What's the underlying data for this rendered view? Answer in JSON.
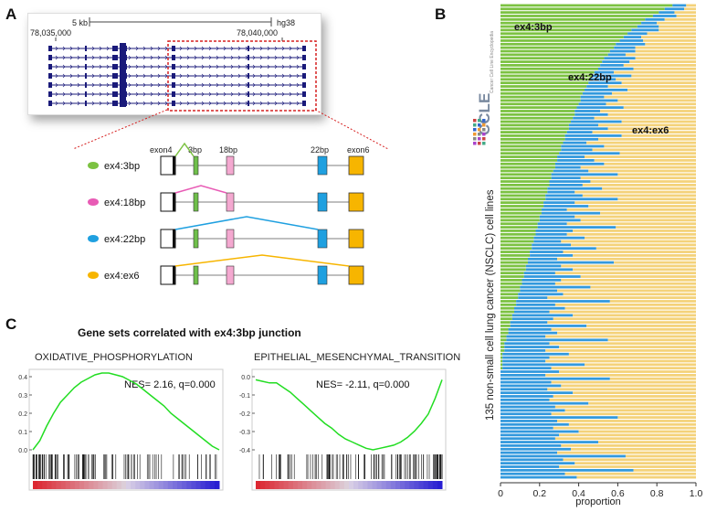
{
  "panels": {
    "a": "A",
    "b": "B",
    "c": "C"
  },
  "panel_a": {
    "scale_label": "5 kb",
    "assembly": "hg38",
    "coord_left": "78,035,000",
    "coord_right": "78,040,000",
    "exon_labels": [
      "exon4",
      "3bp",
      "18bp",
      "22bp",
      "exon6"
    ],
    "junctions": [
      {
        "label": "ex4:3bp",
        "color": "#7cc242"
      },
      {
        "label": "ex4:18bp",
        "color": "#e85bb5"
      },
      {
        "label": "ex4:22bp",
        "color": "#1fa0e0"
      },
      {
        "label": "ex4:ex6",
        "color": "#f7b500"
      }
    ],
    "colors": {
      "gene": "#1a1a7a",
      "highlight": "#d62020",
      "exon3bp": "#6fbf4a",
      "exon18bp": "#f4a8d0",
      "exon22bp": "#1fa0e0",
      "exon6": "#f7b500"
    }
  },
  "panel_c": {
    "title": "Gene sets correlated with ex4:3bp junction",
    "plots": [
      {
        "name": "OXIDATIVE_PHOSPHORYLATION",
        "stat": "NES= 2.16, q=0.000",
        "yticks": [
          "0.4",
          "0.3",
          "0.2",
          "0.1",
          "0.0"
        ],
        "ymin": 0.0,
        "ymax": 0.4,
        "curve": [
          0.0,
          0.05,
          0.13,
          0.2,
          0.26,
          0.3,
          0.34,
          0.37,
          0.39,
          0.41,
          0.42,
          0.42,
          0.41,
          0.4,
          0.38,
          0.36,
          0.33,
          0.3,
          0.27,
          0.24,
          0.2,
          0.17,
          0.14,
          0.11,
          0.08,
          0.05,
          0.02,
          0.0
        ]
      },
      {
        "name": "EPITHELIAL_MESENCHYMAL_TRANSITION",
        "stat": "NES= -2.11, q=0.000",
        "yticks": [
          "0.0",
          "-0.1",
          "-0.2",
          "-0.3",
          "-0.4"
        ],
        "ymin": -0.45,
        "ymax": 0.02,
        "curve": [
          0.0,
          -0.01,
          -0.02,
          -0.02,
          -0.05,
          -0.08,
          -0.12,
          -0.16,
          -0.2,
          -0.24,
          -0.28,
          -0.31,
          -0.35,
          -0.38,
          -0.4,
          -0.42,
          -0.44,
          -0.45,
          -0.44,
          -0.43,
          -0.42,
          -0.4,
          -0.37,
          -0.33,
          -0.28,
          -0.22,
          -0.12,
          0.0
        ]
      }
    ]
  },
  "chart_data": {
    "type": "bar",
    "orientation": "horizontal-stacked",
    "title": "",
    "xlabel": "proportion",
    "ylabel": "135 non-small cell lung cancer (NSCLC) cell lines",
    "xlim": [
      0,
      1.0
    ],
    "xticks": [
      "0",
      "0.2",
      "0.4",
      "0.6",
      "0.8",
      "1.0"
    ],
    "series_labels": [
      "ex4:3bp",
      "ex4:22bp",
      "ex4:ex6"
    ],
    "series_colors": [
      "#7cc242",
      "#3399dd",
      "#f4d27a"
    ],
    "logo_text": "CCLE",
    "logo_subtext": "Cancer Cell Line Encyclopedia",
    "n_rows": 135,
    "ex4_3bp": [
      0.88,
      0.84,
      0.81,
      0.78,
      0.74,
      0.72,
      0.7,
      0.67,
      0.65,
      0.63,
      0.61,
      0.59,
      0.58,
      0.56,
      0.55,
      0.53,
      0.52,
      0.51,
      0.5,
      0.48,
      0.47,
      0.46,
      0.45,
      0.44,
      0.43,
      0.42,
      0.41,
      0.41,
      0.4,
      0.39,
      0.38,
      0.38,
      0.37,
      0.36,
      0.35,
      0.35,
      0.34,
      0.33,
      0.33,
      0.32,
      0.31,
      0.31,
      0.3,
      0.29,
      0.29,
      0.28,
      0.28,
      0.27,
      0.26,
      0.26,
      0.25,
      0.25,
      0.24,
      0.24,
      0.23,
      0.23,
      0.22,
      0.22,
      0.21,
      0.21,
      0.2,
      0.2,
      0.19,
      0.19,
      0.18,
      0.18,
      0.17,
      0.17,
      0.16,
      0.16,
      0.15,
      0.15,
      0.14,
      0.14,
      0.13,
      0.13,
      0.12,
      0.12,
      0.11,
      0.11,
      0.1,
      0.1,
      0.09,
      0.09,
      0.08,
      0.08,
      0.07,
      0.07,
      0.06,
      0.06,
      0.05,
      0.05,
      0.04,
      0.04,
      0.03,
      0.03,
      0.02,
      0.02,
      0.02,
      0.01,
      0.01,
      0.01,
      0.01,
      0.01,
      0.0,
      0.0,
      0.0,
      0.0,
      0.0,
      0.0,
      0.0,
      0.0,
      0.0,
      0.0,
      0.0,
      0.0,
      0.0,
      0.0,
      0.0,
      0.0,
      0.0,
      0.0,
      0.0,
      0.0,
      0.0,
      0.0,
      0.0,
      0.0,
      0.0,
      0.0,
      0.0,
      0.0,
      0.0,
      0.0,
      0.0
    ],
    "ex4_22bp": [
      0.07,
      0.1,
      0.08,
      0.12,
      0.1,
      0.08,
      0.11,
      0.14,
      0.1,
      0.09,
      0.12,
      0.15,
      0.11,
      0.13,
      0.09,
      0.16,
      0.14,
      0.12,
      0.18,
      0.1,
      0.2,
      0.13,
      0.17,
      0.11,
      0.22,
      0.15,
      0.12,
      0.19,
      0.14,
      0.24,
      0.13,
      0.17,
      0.11,
      0.26,
      0.15,
      0.2,
      0.13,
      0.29,
      0.17,
      0.12,
      0.22,
      0.16,
      0.31,
      0.14,
      0.19,
      0.25,
      0.13,
      0.18,
      0.34,
      0.15,
      0.21,
      0.17,
      0.28,
      0.14,
      0.19,
      0.37,
      0.16,
      0.23,
      0.13,
      0.3,
      0.18,
      0.21,
      0.15,
      0.4,
      0.19,
      0.16,
      0.26,
      0.14,
      0.2,
      0.33,
      0.17,
      0.22,
      0.15,
      0.44,
      0.18,
      0.24,
      0.16,
      0.29,
      0.2,
      0.17,
      0.36,
      0.19,
      0.23,
      0.15,
      0.48,
      0.2,
      0.26,
      0.18,
      0.31,
      0.21,
      0.19,
      0.39,
      0.22,
      0.25,
      0.2,
      0.52,
      0.23,
      0.28,
      0.21,
      0.34,
      0.24,
      0.22,
      0.42,
      0.25,
      0.3,
      0.23,
      0.56,
      0.26,
      0.31,
      0.24,
      0.37,
      0.27,
      0.25,
      0.45,
      0.28,
      0.33,
      0.26,
      0.6,
      0.29,
      0.35,
      0.27,
      0.4,
      0.3,
      0.28,
      0.5,
      0.31,
      0.36,
      0.29,
      0.64,
      0.32,
      0.38,
      0.3,
      0.68,
      0.33,
      0.39
    ]
  }
}
